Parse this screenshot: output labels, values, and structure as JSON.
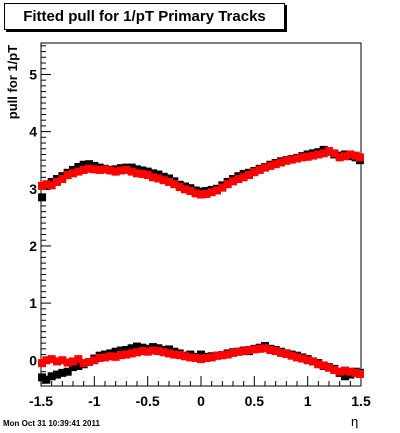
{
  "chart_data": {
    "type": "scatter",
    "title": "Fitted pull for 1/pT  Primary Tracks",
    "xlabel": "η",
    "ylabel": "pull for 1/pT",
    "xlim": [
      -1.5,
      1.5
    ],
    "ylim": [
      -0.45,
      5.55
    ],
    "xticks": [
      "-1.5",
      "-1",
      "-0.5",
      "0",
      "0.5",
      "1",
      "1.5"
    ],
    "yticks": [
      "0",
      "1",
      "2",
      "3",
      "4",
      "5"
    ],
    "xtick_values": [
      -1.5,
      -1,
      -0.5,
      0,
      0.5,
      1,
      1.5
    ],
    "ytick_values": [
      0,
      1,
      2,
      3,
      4,
      5
    ],
    "grid": false,
    "legend": "none",
    "series": [
      {
        "color": "#000000",
        "marker": "square",
        "points": [
          [
            -1.49,
            2.85
          ],
          [
            -1.45,
            3.05
          ],
          [
            -1.4,
            3.12
          ],
          [
            -1.35,
            3.17
          ],
          [
            -1.3,
            3.22
          ],
          [
            -1.25,
            3.28
          ],
          [
            -1.2,
            3.33
          ],
          [
            -1.15,
            3.38
          ],
          [
            -1.1,
            3.42
          ],
          [
            -1.05,
            3.43
          ],
          [
            -1.0,
            3.4
          ],
          [
            -0.95,
            3.37
          ],
          [
            -0.9,
            3.35
          ],
          [
            -0.85,
            3.33
          ],
          [
            -0.8,
            3.34
          ],
          [
            -0.75,
            3.36
          ],
          [
            -0.7,
            3.37
          ],
          [
            -0.65,
            3.37
          ],
          [
            -0.6,
            3.34
          ],
          [
            -0.55,
            3.32
          ],
          [
            -0.5,
            3.3
          ],
          [
            -0.45,
            3.27
          ],
          [
            -0.4,
            3.25
          ],
          [
            -0.35,
            3.21
          ],
          [
            -0.3,
            3.18
          ],
          [
            -0.25,
            3.13
          ],
          [
            -0.2,
            3.07
          ],
          [
            -0.15,
            3.04
          ],
          [
            -0.1,
            3.01
          ],
          [
            -0.05,
            2.97
          ],
          [
            0.0,
            2.95
          ],
          [
            0.05,
            2.96
          ],
          [
            0.1,
            2.98
          ],
          [
            0.15,
            3.0
          ],
          [
            0.2,
            3.06
          ],
          [
            0.25,
            3.12
          ],
          [
            0.3,
            3.17
          ],
          [
            0.35,
            3.22
          ],
          [
            0.4,
            3.26
          ],
          [
            0.45,
            3.28
          ],
          [
            0.5,
            3.31
          ],
          [
            0.55,
            3.35
          ],
          [
            0.6,
            3.38
          ],
          [
            0.65,
            3.42
          ],
          [
            0.7,
            3.45
          ],
          [
            0.75,
            3.48
          ],
          [
            0.8,
            3.5
          ],
          [
            0.85,
            3.52
          ],
          [
            0.9,
            3.54
          ],
          [
            0.95,
            3.57
          ],
          [
            1.0,
            3.6
          ],
          [
            1.05,
            3.62
          ],
          [
            1.1,
            3.64
          ],
          [
            1.15,
            3.68
          ],
          [
            1.2,
            3.65
          ],
          [
            1.25,
            3.6
          ],
          [
            1.3,
            3.58
          ],
          [
            1.35,
            3.6
          ],
          [
            1.4,
            3.57
          ],
          [
            1.45,
            3.55
          ],
          [
            1.49,
            3.5
          ],
          [
            -1.49,
            -0.3
          ],
          [
            -1.45,
            -0.34
          ],
          [
            -1.4,
            -0.28
          ],
          [
            -1.35,
            -0.25
          ],
          [
            -1.3,
            -0.22
          ],
          [
            -1.25,
            -0.2
          ],
          [
            -1.2,
            -0.12
          ],
          [
            -1.15,
            -0.1
          ],
          [
            -1.1,
            -0.07
          ],
          [
            -1.05,
            -0.03
          ],
          [
            -1.0,
            0.03
          ],
          [
            -0.95,
            0.08
          ],
          [
            -0.9,
            0.1
          ],
          [
            -0.85,
            0.12
          ],
          [
            -0.8,
            0.15
          ],
          [
            -0.75,
            0.17
          ],
          [
            -0.7,
            0.18
          ],
          [
            -0.65,
            0.21
          ],
          [
            -0.6,
            0.24
          ],
          [
            -0.55,
            0.22
          ],
          [
            -0.5,
            0.2
          ],
          [
            -0.45,
            0.23
          ],
          [
            -0.4,
            0.21
          ],
          [
            -0.35,
            0.18
          ],
          [
            -0.3,
            0.19
          ],
          [
            -0.25,
            0.15
          ],
          [
            -0.2,
            0.12
          ],
          [
            -0.15,
            0.08
          ],
          [
            -0.1,
            0.1
          ],
          [
            -0.05,
            0.06
          ],
          [
            0.0,
            0.1
          ],
          [
            0.05,
            0.06
          ],
          [
            0.1,
            0.07
          ],
          [
            0.15,
            0.08
          ],
          [
            0.2,
            0.09
          ],
          [
            0.25,
            0.12
          ],
          [
            0.3,
            0.14
          ],
          [
            0.35,
            0.15
          ],
          [
            0.4,
            0.17
          ],
          [
            0.45,
            0.16
          ],
          [
            0.5,
            0.2
          ],
          [
            0.55,
            0.22
          ],
          [
            0.6,
            0.25
          ],
          [
            0.65,
            0.2
          ],
          [
            0.7,
            0.18
          ],
          [
            0.75,
            0.15
          ],
          [
            0.8,
            0.12
          ],
          [
            0.85,
            0.1
          ],
          [
            0.9,
            0.08
          ],
          [
            0.95,
            0.05
          ],
          [
            1.0,
            0.02
          ],
          [
            1.05,
            -0.02
          ],
          [
            1.1,
            -0.05
          ],
          [
            1.15,
            -0.1
          ],
          [
            1.2,
            -0.12
          ],
          [
            1.25,
            -0.15
          ],
          [
            1.3,
            -0.22
          ],
          [
            1.35,
            -0.28
          ],
          [
            1.4,
            -0.25
          ],
          [
            1.45,
            -0.2
          ],
          [
            1.49,
            -0.22
          ]
        ]
      },
      {
        "color": "#ff0000",
        "marker": "square",
        "points": [
          [
            -1.49,
            3.05
          ],
          [
            -1.45,
            3.08
          ],
          [
            -1.4,
            3.06
          ],
          [
            -1.35,
            3.12
          ],
          [
            -1.3,
            3.17
          ],
          [
            -1.25,
            3.24
          ],
          [
            -1.2,
            3.27
          ],
          [
            -1.15,
            3.3
          ],
          [
            -1.1,
            3.33
          ],
          [
            -1.05,
            3.35
          ],
          [
            -1.0,
            3.34
          ],
          [
            -0.95,
            3.33
          ],
          [
            -0.9,
            3.34
          ],
          [
            -0.85,
            3.32
          ],
          [
            -0.8,
            3.3
          ],
          [
            -0.75,
            3.32
          ],
          [
            -0.7,
            3.33
          ],
          [
            -0.65,
            3.3
          ],
          [
            -0.6,
            3.27
          ],
          [
            -0.55,
            3.26
          ],
          [
            -0.5,
            3.24
          ],
          [
            -0.45,
            3.2
          ],
          [
            -0.4,
            3.18
          ],
          [
            -0.35,
            3.15
          ],
          [
            -0.3,
            3.12
          ],
          [
            -0.25,
            3.08
          ],
          [
            -0.2,
            3.03
          ],
          [
            -0.15,
            2.99
          ],
          [
            -0.1,
            2.96
          ],
          [
            -0.05,
            2.92
          ],
          [
            0.0,
            2.9
          ],
          [
            0.05,
            2.91
          ],
          [
            0.1,
            2.94
          ],
          [
            0.15,
            2.97
          ],
          [
            0.2,
            3.02
          ],
          [
            0.25,
            3.08
          ],
          [
            0.3,
            3.13
          ],
          [
            0.35,
            3.17
          ],
          [
            0.4,
            3.2
          ],
          [
            0.45,
            3.24
          ],
          [
            0.5,
            3.29
          ],
          [
            0.55,
            3.33
          ],
          [
            0.6,
            3.37
          ],
          [
            0.65,
            3.4
          ],
          [
            0.7,
            3.43
          ],
          [
            0.75,
            3.46
          ],
          [
            0.8,
            3.49
          ],
          [
            0.85,
            3.51
          ],
          [
            0.9,
            3.53
          ],
          [
            0.95,
            3.55
          ],
          [
            1.0,
            3.56
          ],
          [
            1.05,
            3.58
          ],
          [
            1.1,
            3.6
          ],
          [
            1.15,
            3.62
          ],
          [
            1.2,
            3.66
          ],
          [
            1.25,
            3.62
          ],
          [
            1.3,
            3.55
          ],
          [
            1.35,
            3.57
          ],
          [
            1.4,
            3.6
          ],
          [
            1.45,
            3.58
          ],
          [
            1.49,
            3.55
          ],
          [
            -1.49,
            -0.05
          ],
          [
            -1.45,
            0.0
          ],
          [
            -1.4,
            0.02
          ],
          [
            -1.35,
            -0.02
          ],
          [
            -1.3,
            0.0
          ],
          [
            -1.25,
            -0.04
          ],
          [
            -1.2,
            -0.02
          ],
          [
            -1.15,
            0.02
          ],
          [
            -1.1,
            -0.05
          ],
          [
            -1.05,
            -0.03
          ],
          [
            -1.0,
            0.0
          ],
          [
            -0.95,
            0.04
          ],
          [
            -0.9,
            0.05
          ],
          [
            -0.85,
            0.07
          ],
          [
            -0.8,
            0.06
          ],
          [
            -0.75,
            0.09
          ],
          [
            -0.7,
            0.1
          ],
          [
            -0.65,
            0.12
          ],
          [
            -0.6,
            0.14
          ],
          [
            -0.55,
            0.16
          ],
          [
            -0.5,
            0.15
          ],
          [
            -0.45,
            0.17
          ],
          [
            -0.4,
            0.16
          ],
          [
            -0.35,
            0.14
          ],
          [
            -0.3,
            0.12
          ],
          [
            -0.25,
            0.1
          ],
          [
            -0.2,
            0.09
          ],
          [
            -0.15,
            0.07
          ],
          [
            -0.1,
            0.05
          ],
          [
            -0.05,
            0.04
          ],
          [
            0.0,
            0.02
          ],
          [
            0.05,
            0.04
          ],
          [
            0.1,
            0.05
          ],
          [
            0.15,
            0.08
          ],
          [
            0.2,
            0.09
          ],
          [
            0.25,
            0.1
          ],
          [
            0.3,
            0.13
          ],
          [
            0.35,
            0.15
          ],
          [
            0.4,
            0.16
          ],
          [
            0.45,
            0.18
          ],
          [
            0.5,
            0.19
          ],
          [
            0.55,
            0.2
          ],
          [
            0.6,
            0.21
          ],
          [
            0.65,
            0.18
          ],
          [
            0.7,
            0.16
          ],
          [
            0.75,
            0.13
          ],
          [
            0.8,
            0.11
          ],
          [
            0.85,
            0.08
          ],
          [
            0.9,
            0.05
          ],
          [
            0.95,
            0.03
          ],
          [
            1.0,
            0.0
          ],
          [
            1.05,
            -0.02
          ],
          [
            1.1,
            -0.07
          ],
          [
            1.15,
            -0.09
          ],
          [
            1.2,
            -0.13
          ],
          [
            1.25,
            -0.17
          ],
          [
            1.3,
            -0.2
          ],
          [
            1.35,
            -0.18
          ],
          [
            1.4,
            -0.2
          ],
          [
            1.45,
            -0.22
          ],
          [
            1.49,
            -0.24
          ]
        ]
      }
    ]
  },
  "footer": {
    "timestamp": "Mon Oct 31 10:39:41 2011"
  }
}
